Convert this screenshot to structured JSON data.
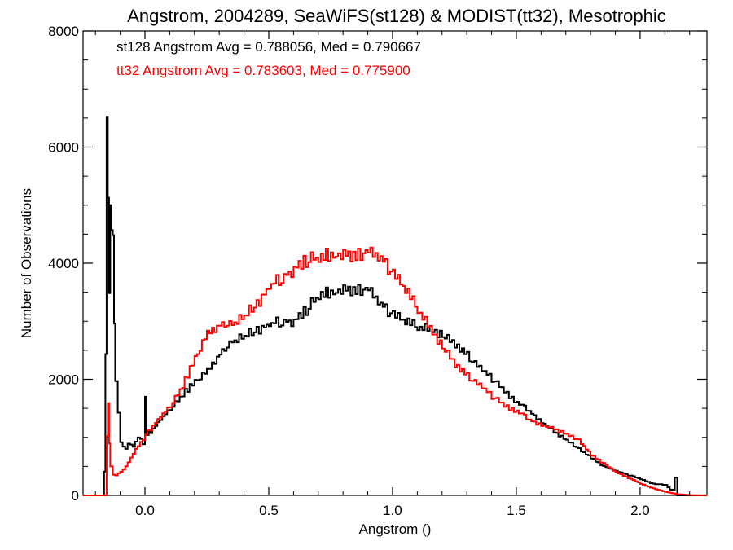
{
  "chart_data": {
    "type": "line",
    "title": "Angstrom, 2004289, SeaWiFS(st128) & MODIST(tt32), Mesotrophic",
    "xlabel": "Angstrom ()",
    "ylabel": "Number of Observations",
    "xlim": [
      -0.25,
      2.27
    ],
    "ylim": [
      0,
      8000
    ],
    "xticks": [
      "0.0",
      "0.5",
      "1.0",
      "1.5",
      "2.0"
    ],
    "yticks": [
      "0",
      "2000",
      "4000",
      "6000",
      "8000"
    ],
    "grid": false,
    "annotations": [
      "st128 Angstrom Avg = 0.788056, Med = 0.790667",
      "tt32 Angstrom Avg = 0.783603, Med = 0.775900"
    ],
    "series": [
      {
        "color": "#000000",
        "x": [
          -0.25,
          -0.17,
          -0.165,
          -0.16,
          -0.155,
          -0.15,
          -0.145,
          -0.14,
          -0.135,
          -0.13,
          -0.125,
          -0.12,
          -0.11,
          -0.1,
          -0.09,
          -0.08,
          -0.07,
          -0.05,
          -0.03,
          -0.01,
          0.0,
          0.005,
          0.02,
          0.05,
          0.1,
          0.15,
          0.2,
          0.25,
          0.3,
          0.35,
          0.4,
          0.45,
          0.5,
          0.55,
          0.6,
          0.65,
          0.7,
          0.75,
          0.8,
          0.85,
          0.9,
          0.95,
          1.0,
          1.05,
          1.1,
          1.15,
          1.2,
          1.25,
          1.3,
          1.35,
          1.4,
          1.45,
          1.5,
          1.55,
          1.6,
          1.65,
          1.7,
          1.75,
          1.8,
          1.85,
          1.9,
          1.95,
          2.0,
          2.05,
          2.1,
          2.12,
          2.13,
          2.14,
          2.15,
          2.27
        ],
        "values": [
          0,
          0,
          400,
          2500,
          6400,
          5000,
          3500,
          5000,
          4500,
          4400,
          3000,
          2000,
          1400,
          900,
          850,
          800,
          900,
          850,
          1000,
          900,
          1700,
          1050,
          1100,
          1250,
          1500,
          1750,
          1950,
          2150,
          2450,
          2650,
          2750,
          2850,
          2950,
          3000,
          3000,
          3200,
          3450,
          3500,
          3550,
          3550,
          3550,
          3300,
          3100,
          3000,
          2900,
          2850,
          2750,
          2600,
          2400,
          2200,
          2000,
          1800,
          1600,
          1450,
          1250,
          1100,
          950,
          800,
          650,
          500,
          420,
          350,
          280,
          200,
          180,
          100,
          100,
          300,
          0,
          0
        ]
      },
      {
        "color": "#ff0000",
        "x": [
          -0.25,
          -0.16,
          -0.155,
          -0.15,
          -0.145,
          -0.14,
          -0.13,
          -0.12,
          -0.1,
          -0.08,
          -0.06,
          -0.04,
          -0.02,
          0.0,
          0.02,
          0.05,
          0.1,
          0.15,
          0.2,
          0.25,
          0.3,
          0.35,
          0.4,
          0.45,
          0.5,
          0.55,
          0.6,
          0.65,
          0.7,
          0.75,
          0.8,
          0.85,
          0.9,
          0.95,
          1.0,
          1.05,
          1.1,
          1.15,
          1.2,
          1.25,
          1.3,
          1.35,
          1.4,
          1.45,
          1.5,
          1.55,
          1.6,
          1.65,
          1.7,
          1.75,
          1.8,
          1.85,
          1.9,
          1.95,
          2.0,
          2.05,
          2.1,
          2.15,
          2.2,
          2.27
        ],
        "values": [
          0,
          0,
          1000,
          1550,
          900,
          500,
          350,
          350,
          400,
          500,
          650,
          800,
          900,
          1050,
          1150,
          1300,
          1550,
          1900,
          2350,
          2800,
          2950,
          2950,
          3100,
          3300,
          3600,
          3750,
          3900,
          4050,
          4100,
          4150,
          4150,
          4150,
          4200,
          4100,
          3800,
          3550,
          3200,
          2850,
          2550,
          2250,
          2050,
          1900,
          1700,
          1550,
          1450,
          1300,
          1200,
          1150,
          1050,
          950,
          700,
          550,
          400,
          300,
          200,
          120,
          60,
          20,
          5,
          0
        ]
      }
    ]
  }
}
